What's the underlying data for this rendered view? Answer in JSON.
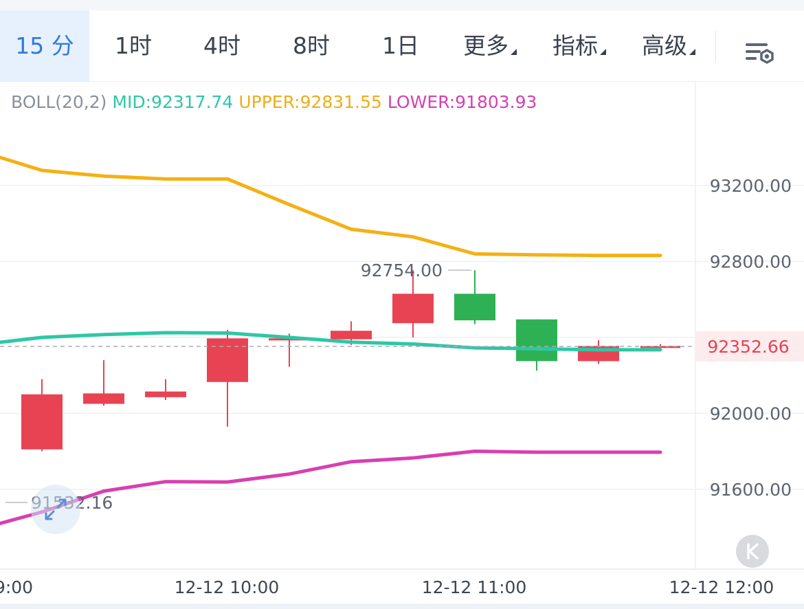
{
  "tabs": [
    {
      "label": "15 分",
      "active": true
    },
    {
      "label": "1时",
      "active": false
    },
    {
      "label": "4时",
      "active": false
    },
    {
      "label": "8时",
      "active": false
    },
    {
      "label": "1日",
      "active": false
    },
    {
      "label": "更多",
      "active": false,
      "dropdown": true
    },
    {
      "label": "指标",
      "active": false,
      "dropdown": true
    },
    {
      "label": "高级",
      "active": false,
      "dropdown": true
    }
  ],
  "settings_icon": "chart-settings-icon",
  "indicator": {
    "name": "BOLL(20,2)",
    "mid": "MID:92317.74",
    "upper": "UPPER:92831.55",
    "lower": "LOWER:91803.93"
  },
  "colors": {
    "up": "#e84352",
    "down": "#2eb154",
    "mid_line": "#2ec7a6",
    "upper_line": "#f5b013",
    "lower_line": "#d83fb1",
    "active_tab": "#2e7be0",
    "price_tag_text": "#e84352"
  },
  "chart_data": {
    "type": "candlestick",
    "indicator": "BOLL(20,2)",
    "price_axis_labels": [
      "93200.00",
      "92800.00",
      "92000.00",
      "91600.00"
    ],
    "time_axis_labels": [
      "9:00",
      "12-12 10:00",
      "12-12 11:00",
      "12-12 12:00"
    ],
    "current_price": "92352.66",
    "max_label": "92754.00",
    "min_label": "91532.16",
    "candles": [
      {
        "open": 91810,
        "close": 92100,
        "high": 92180,
        "low": 91800
      },
      {
        "open": 92050,
        "close": 92105,
        "high": 92280,
        "low": 92040
      },
      {
        "open": 92085,
        "close": 92115,
        "high": 92180,
        "low": 92070
      },
      {
        "open": 92165,
        "close": 92395,
        "high": 92440,
        "low": 91930
      },
      {
        "open": 92385,
        "close": 92395,
        "high": 92420,
        "low": 92245
      },
      {
        "open": 92390,
        "close": 92435,
        "high": 92485,
        "low": 92360
      },
      {
        "open": 92475,
        "close": 92630,
        "high": 92754,
        "low": 92400
      },
      {
        "open": 92630,
        "close": 92490,
        "high": 92754,
        "low": 92470
      },
      {
        "open": 92495,
        "close": 92275,
        "high": 92495,
        "low": 92225
      },
      {
        "open": 92275,
        "close": 92355,
        "high": 92385,
        "low": 92260
      },
      {
        "open": 92345,
        "close": 92355,
        "high": 92365,
        "low": 92340
      }
    ],
    "boll_upper": [
      93360,
      93280,
      93250,
      93235,
      93235,
      93100,
      92970,
      92930,
      92840,
      92835,
      92832,
      92832
    ],
    "boll_mid": [
      92370,
      92400,
      92415,
      92425,
      92423,
      92400,
      92375,
      92365,
      92345,
      92340,
      92335,
      92335
    ],
    "boll_lower": [
      91410,
      91480,
      91590,
      91640,
      91638,
      91680,
      91745,
      91765,
      91800,
      91795,
      91795,
      91795
    ]
  }
}
